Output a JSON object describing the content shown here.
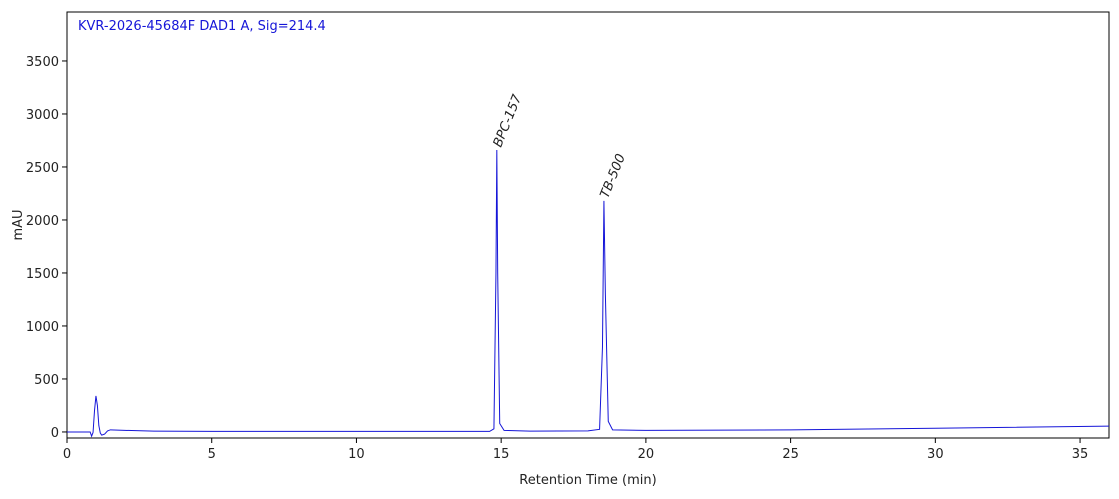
{
  "chart_data": {
    "type": "line",
    "title": "KVR-2026-45684F DAD1 A, Sig=214.4",
    "x_label": "Retention Time (min)",
    "y_label": "mAU",
    "x": [
      0,
      0.8,
      0.85,
      0.9,
      0.95,
      1.0,
      1.05,
      1.1,
      1.15,
      1.2,
      1.3,
      1.4,
      1.5,
      2,
      3,
      5,
      10,
      14.6,
      14.75,
      14.82,
      14.85,
      14.88,
      14.95,
      15.1,
      16,
      18,
      18.4,
      18.5,
      18.55,
      18.6,
      18.7,
      18.85,
      20,
      25,
      30,
      36
    ],
    "values": [
      0,
      0,
      -40,
      -5,
      200,
      340,
      250,
      60,
      -10,
      -30,
      -20,
      10,
      20,
      15,
      8,
      5,
      5,
      5,
      30,
      1500,
      2660,
      1500,
      80,
      15,
      8,
      10,
      25,
      800,
      2180,
      1300,
      100,
      20,
      15,
      20,
      35,
      55
    ],
    "color": "#1515d8",
    "annotations": [
      {
        "text": "BPC-157",
        "x": 14.85,
        "y": 2660
      },
      {
        "text": "TB-500",
        "x": 18.55,
        "y": 2180
      }
    ],
    "xlim": [
      0,
      36
    ],
    "xticks": [
      0,
      5,
      10,
      15,
      20,
      25,
      30,
      35
    ],
    "ylim": [
      -57,
      3962
    ],
    "yticks": [
      0,
      500,
      1000,
      1500,
      2000,
      2500,
      3000,
      3500
    ]
  }
}
